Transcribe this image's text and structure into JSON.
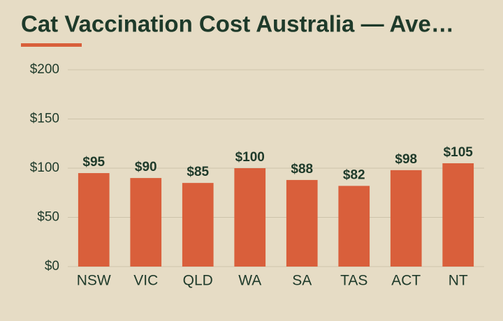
{
  "chart_data": {
    "type": "bar",
    "title": "Cat Vaccination Cost Australia — Ave…",
    "categories": [
      "NSW",
      "VIC",
      "QLD",
      "WA",
      "SA",
      "TAS",
      "ACT",
      "NT"
    ],
    "values": [
      95,
      90,
      85,
      100,
      88,
      82,
      98,
      105
    ],
    "value_labels": [
      "$95",
      "$90",
      "$85",
      "$100",
      "$88",
      "$82",
      "$98",
      "$105"
    ],
    "color": "#d95f3b",
    "ylim": [
      0,
      200
    ],
    "yticks": [
      {
        "value": 0,
        "label": "$0"
      },
      {
        "value": 50,
        "label": "$50"
      },
      {
        "value": 100,
        "label": "$100"
      },
      {
        "value": 150,
        "label": "$150"
      },
      {
        "value": 200,
        "label": "$200"
      }
    ],
    "grid": true
  }
}
